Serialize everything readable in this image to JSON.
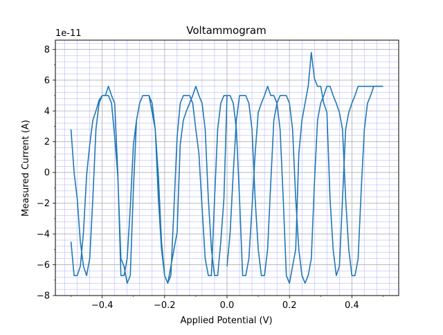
{
  "chart_data": {
    "type": "line",
    "title": "Voltammogram",
    "xlabel": "Applied Potential (V)",
    "ylabel": "Measured Current (A)",
    "y_offset_text": "1e-11",
    "xlim": [
      -0.55,
      0.55
    ],
    "ylim": [
      -8.0,
      8.6
    ],
    "y_scale_factor": 1e-11,
    "grid": true,
    "minor_grid": true,
    "line_color": "#1f77b4",
    "major_grid_color": "#b0b0b0",
    "minor_grid_color": "#aaaaff",
    "x_ticks": [
      -0.4,
      -0.2,
      0.0,
      0.2,
      0.4
    ],
    "x_tick_labels": [
      "−0.4",
      "−0.2",
      "0.0",
      "0.2",
      "0.4"
    ],
    "y_ticks": [
      -8,
      -6,
      -4,
      -2,
      0,
      2,
      4,
      6,
      8
    ],
    "y_tick_labels": [
      "−8",
      "−6",
      "−4",
      "−2",
      "0",
      "2",
      "4",
      "6",
      "8"
    ],
    "series": [
      {
        "x": [
          -0.5,
          -0.49,
          -0.48,
          -0.47,
          -0.46,
          -0.45,
          -0.44,
          -0.43,
          -0.42,
          -0.41,
          -0.4,
          -0.39,
          -0.38,
          -0.37,
          -0.36,
          -0.35,
          -0.34,
          -0.33,
          -0.32,
          -0.31,
          -0.3,
          -0.29,
          -0.28,
          -0.27,
          -0.26,
          -0.25,
          -0.24,
          -0.23,
          -0.22,
          -0.21,
          -0.2,
          -0.19,
          -0.18,
          -0.17,
          -0.16,
          -0.15,
          -0.14,
          -0.13,
          -0.12,
          -0.11,
          -0.1,
          -0.09,
          -0.08,
          -0.07,
          -0.06,
          -0.05,
          -0.04,
          -0.03,
          -0.02,
          -0.01,
          0.0,
          -0.01,
          -0.02,
          -0.03,
          -0.04,
          -0.05,
          -0.06,
          -0.07,
          -0.08,
          -0.09,
          -0.1,
          -0.11,
          -0.12,
          -0.13,
          -0.14,
          -0.15,
          -0.16,
          -0.17,
          -0.18,
          -0.19,
          -0.2,
          -0.21,
          -0.22,
          -0.23,
          -0.24,
          -0.25,
          -0.26,
          -0.27,
          -0.28,
          -0.29,
          -0.3,
          -0.31,
          -0.32,
          -0.33,
          -0.34,
          -0.35,
          -0.36,
          -0.37,
          -0.38,
          -0.39,
          -0.4,
          -0.41,
          -0.42,
          -0.43,
          -0.44,
          -0.45,
          -0.46,
          -0.47,
          -0.48,
          -0.49,
          -0.5
        ],
        "y": [
          -4.5,
          -6.7,
          -6.7,
          -6.1,
          -3.9,
          -0.2,
          1.8,
          3.4,
          4.0,
          4.7,
          5.0,
          5.0,
          5.6,
          5.0,
          4.5,
          0.0,
          -6.7,
          -6.7,
          -5.6,
          -2.3,
          1.8,
          3.4,
          4.5,
          5.0,
          5.0,
          5.0,
          4.5,
          2.8,
          -1.7,
          -5.0,
          -6.7,
          -7.2,
          -6.1,
          -5.0,
          -3.9,
          1.8,
          3.4,
          4.0,
          4.5,
          5.0,
          5.6,
          5.0,
          4.5,
          2.8,
          -1.7,
          -5.0,
          -6.7,
          -6.7,
          -4.5,
          -1.7,
          5.0,
          5.0,
          4.5,
          2.8,
          -1.7,
          -6.7,
          -6.7,
          -5.6,
          -2.3,
          1.2,
          2.8,
          4.5,
          5.0,
          5.0,
          5.0,
          4.5,
          2.3,
          -2.3,
          -6.7,
          -7.2,
          -6.7,
          -4.5,
          -0.2,
          2.8,
          3.9,
          5.0,
          5.0,
          5.0,
          4.5,
          3.4,
          -1.1,
          -6.7,
          -7.2,
          -6.1,
          -5.6,
          -0.2,
          2.3,
          4.5,
          5.0,
          5.0,
          5.0,
          4.5,
          2.8,
          -1.7,
          -5.6,
          -6.7,
          -6.1,
          -4.5,
          -1.7,
          0.0,
          2.8
        ]
      },
      {
        "x": [
          0.0,
          0.01,
          0.02,
          0.03,
          0.04,
          0.05,
          0.06,
          0.07,
          0.08,
          0.09,
          0.1,
          0.11,
          0.12,
          0.13,
          0.14,
          0.15,
          0.16,
          0.17,
          0.18,
          0.19,
          0.2,
          0.21,
          0.22,
          0.23,
          0.24,
          0.25,
          0.26,
          0.27,
          0.28,
          0.29,
          0.3,
          0.31,
          0.32,
          0.33,
          0.34,
          0.35,
          0.36,
          0.37,
          0.38,
          0.39,
          0.4,
          0.41,
          0.42,
          0.43,
          0.44,
          0.45,
          0.46,
          0.47,
          0.48,
          0.49,
          0.5
        ],
        "y": [
          5.0,
          5.0,
          4.5,
          2.8,
          -1.7,
          -6.7,
          -6.7,
          -5.6,
          -2.3,
          1.2,
          3.9,
          4.5,
          5.0,
          5.6,
          5.0,
          5.0,
          4.5,
          2.8,
          -1.7,
          -6.7,
          -7.2,
          -6.1,
          -5.0,
          1.2,
          3.4,
          4.5,
          5.6,
          7.8,
          6.1,
          5.6,
          5.6,
          4.5,
          3.9,
          -1.7,
          -5.0,
          -6.7,
          -6.1,
          -1.7,
          2.8,
          3.9,
          4.5,
          5.0,
          5.6,
          5.6,
          5.6,
          5.6,
          5.6,
          5.6,
          5.6,
          5.6,
          5.6
        ]
      },
      {
        "x": [
          0.0,
          0.01,
          0.02,
          0.03,
          0.04,
          0.05,
          0.06,
          0.07,
          0.08,
          0.09,
          0.1,
          0.11,
          0.12,
          0.13,
          0.14,
          0.15,
          0.16,
          0.17,
          0.18,
          0.19,
          0.2,
          0.21,
          0.22,
          0.23,
          0.24,
          0.25,
          0.26,
          0.27,
          0.28,
          0.29,
          0.3,
          0.31,
          0.32,
          0.33,
          0.34,
          0.35,
          0.36,
          0.37,
          0.38,
          0.39,
          0.4,
          0.41,
          0.42,
          0.43,
          0.44,
          0.45,
          0.46,
          0.47,
          0.48,
          0.49,
          0.5
        ],
        "y": [
          -6.1,
          -3.9,
          0.0,
          3.4,
          5.0,
          5.0,
          5.0,
          4.5,
          2.8,
          -1.7,
          -5.0,
          -6.7,
          -6.7,
          -5.0,
          -0.7,
          3.4,
          4.5,
          5.0,
          5.0,
          5.0,
          4.5,
          2.8,
          -1.7,
          -5.0,
          -6.7,
          -7.2,
          -6.7,
          -5.6,
          -0.7,
          3.4,
          4.5,
          5.0,
          5.6,
          5.6,
          5.0,
          4.5,
          3.9,
          2.8,
          -1.7,
          -5.0,
          -6.7,
          -6.7,
          -5.6,
          -1.1,
          2.8,
          4.5,
          5.0,
          5.6,
          5.6,
          5.6,
          5.6
        ]
      }
    ]
  }
}
